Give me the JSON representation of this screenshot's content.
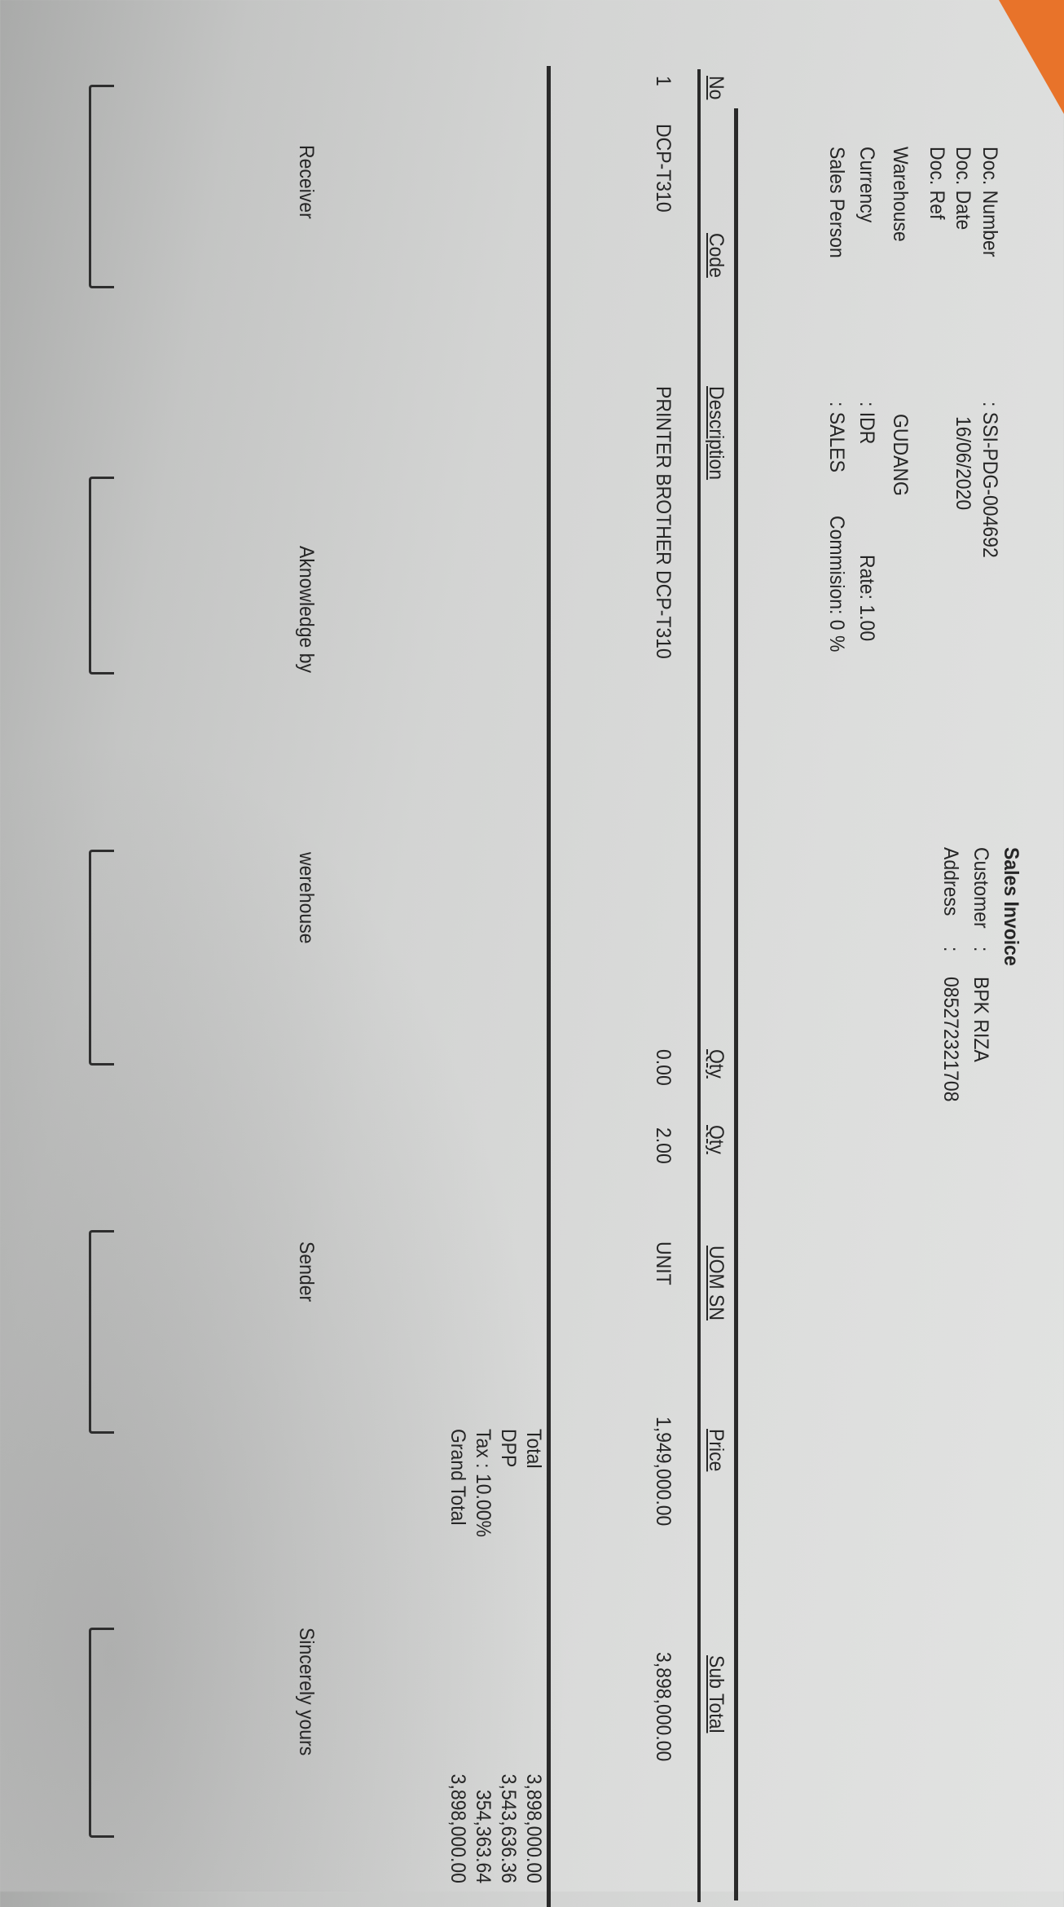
{
  "title": "Sales Invoice",
  "header_left": [
    {
      "label": "Doc. Number",
      "value": ": SSI-PDG-004692"
    },
    {
      "label": "Doc. Date",
      "value": "16/06/2020"
    },
    {
      "label": "Doc. Ref",
      "value": ""
    },
    {
      "label": "Warehouse",
      "value": "GUDANG"
    },
    {
      "label": "Currency",
      "value": ": IDR",
      "extra": "Rate: 1.00"
    },
    {
      "label": "Sales Person",
      "value": ": SALES",
      "extra": "Commision: 0 %"
    }
  ],
  "header_right": [
    {
      "label": "Customer",
      "colon": ":",
      "value": "BPK RIZA"
    },
    {
      "label": "Address",
      "colon": ":",
      "value": "085272321708"
    }
  ],
  "table": {
    "columns": [
      "No",
      "Code",
      "Description",
      "Qty",
      "Qty",
      "UOM SN",
      "Price",
      "Sub Total"
    ],
    "rows": [
      [
        "1",
        "DCP-T310",
        "PRINTER BROTHER DCP-T310",
        "0.00",
        "2.00",
        "UNIT",
        "1,949,000.00",
        "3,898,000.00"
      ]
    ]
  },
  "totals": [
    {
      "label": "Total",
      "value": "3,898,000.00"
    },
    {
      "label": "DPP",
      "value": "3,543,636.36"
    },
    {
      "label": "Tax : 10.00%",
      "value": "354,363.64"
    },
    {
      "label": "Grand Total",
      "value": "3,898,000.00"
    }
  ],
  "signatures": [
    "Receiver",
    "Aknowledge by",
    "werehouse",
    "Sender",
    "Sincerely yours"
  ],
  "colors": {
    "paper": "#dcdddc",
    "ink": "#262626",
    "corner": "#e8732a"
  }
}
